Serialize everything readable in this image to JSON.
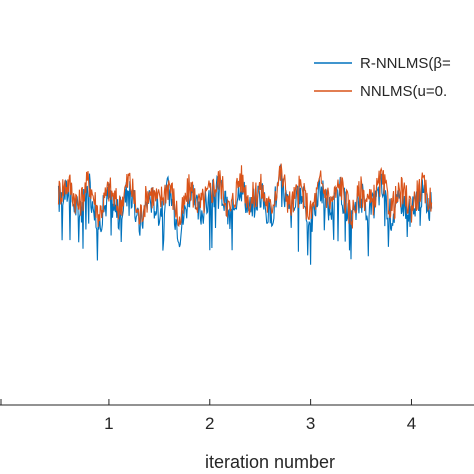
{
  "chart_data": {
    "type": "line",
    "xlabel": "iteration number",
    "ylabel": "",
    "title": "",
    "x_scale_note": "",
    "xlim": [
      0.5,
      4.2
    ],
    "ylim": [
      -1,
      1
    ],
    "x_ticks": [
      {
        "value": 1,
        "label": "1"
      },
      {
        "value": 2,
        "label": "2"
      },
      {
        "value": 3,
        "label": "3"
      },
      {
        "value": 4,
        "label": "4"
      }
    ],
    "grid": false,
    "legend_position": "top-right",
    "series": [
      {
        "name": "R-NNLMS(β=",
        "color": "#0072BD",
        "x": [
          0.5,
          0.6,
          0.7,
          0.8,
          0.9,
          1.0,
          1.1,
          1.2,
          1.3,
          1.4,
          1.5,
          1.6,
          1.7,
          1.8,
          1.9,
          2.0,
          2.1,
          2.2,
          2.3,
          2.4,
          2.5,
          2.6,
          2.7,
          2.8,
          2.9,
          3.0,
          3.1,
          3.2,
          3.3,
          3.4,
          3.5,
          3.6,
          3.7,
          3.8,
          3.9,
          4.0,
          4.1,
          4.2
        ],
        "y": [
          0.02,
          0.06,
          -0.05,
          0.08,
          -0.1,
          0.04,
          -0.07,
          0.09,
          -0.12,
          0.03,
          -0.04,
          0.07,
          -0.15,
          0.05,
          -0.06,
          0.02,
          0.08,
          -0.09,
          0.1,
          -0.03,
          0.05,
          -0.08,
          0.12,
          -0.06,
          0.04,
          -0.1,
          0.07,
          -0.04,
          0.06,
          -0.11,
          0.03,
          -0.05,
          0.08,
          -0.07,
          0.02,
          -0.06,
          0.05,
          -0.03
        ]
      },
      {
        "name": "NNLMS(u=0.",
        "color": "#D95319",
        "x": [
          0.5,
          0.6,
          0.7,
          0.8,
          0.9,
          1.0,
          1.1,
          1.2,
          1.3,
          1.4,
          1.5,
          1.6,
          1.7,
          1.8,
          1.9,
          2.0,
          2.1,
          2.2,
          2.3,
          2.4,
          2.5,
          2.6,
          2.7,
          2.8,
          2.9,
          3.0,
          3.1,
          3.2,
          3.3,
          3.4,
          3.5,
          3.6,
          3.7,
          3.8,
          3.9,
          4.0,
          4.1,
          4.2
        ],
        "y": [
          0.05,
          0.1,
          -0.02,
          0.11,
          -0.06,
          0.07,
          -0.03,
          0.12,
          -0.08,
          0.06,
          0.0,
          0.1,
          -0.1,
          0.08,
          -0.02,
          0.05,
          0.11,
          -0.05,
          0.13,
          0.0,
          0.08,
          -0.04,
          0.15,
          -0.02,
          0.07,
          -0.06,
          0.1,
          0.0,
          0.09,
          -0.07,
          0.06,
          -0.01,
          0.11,
          -0.03,
          0.05,
          -0.02,
          0.08,
          0.0
        ]
      }
    ]
  }
}
